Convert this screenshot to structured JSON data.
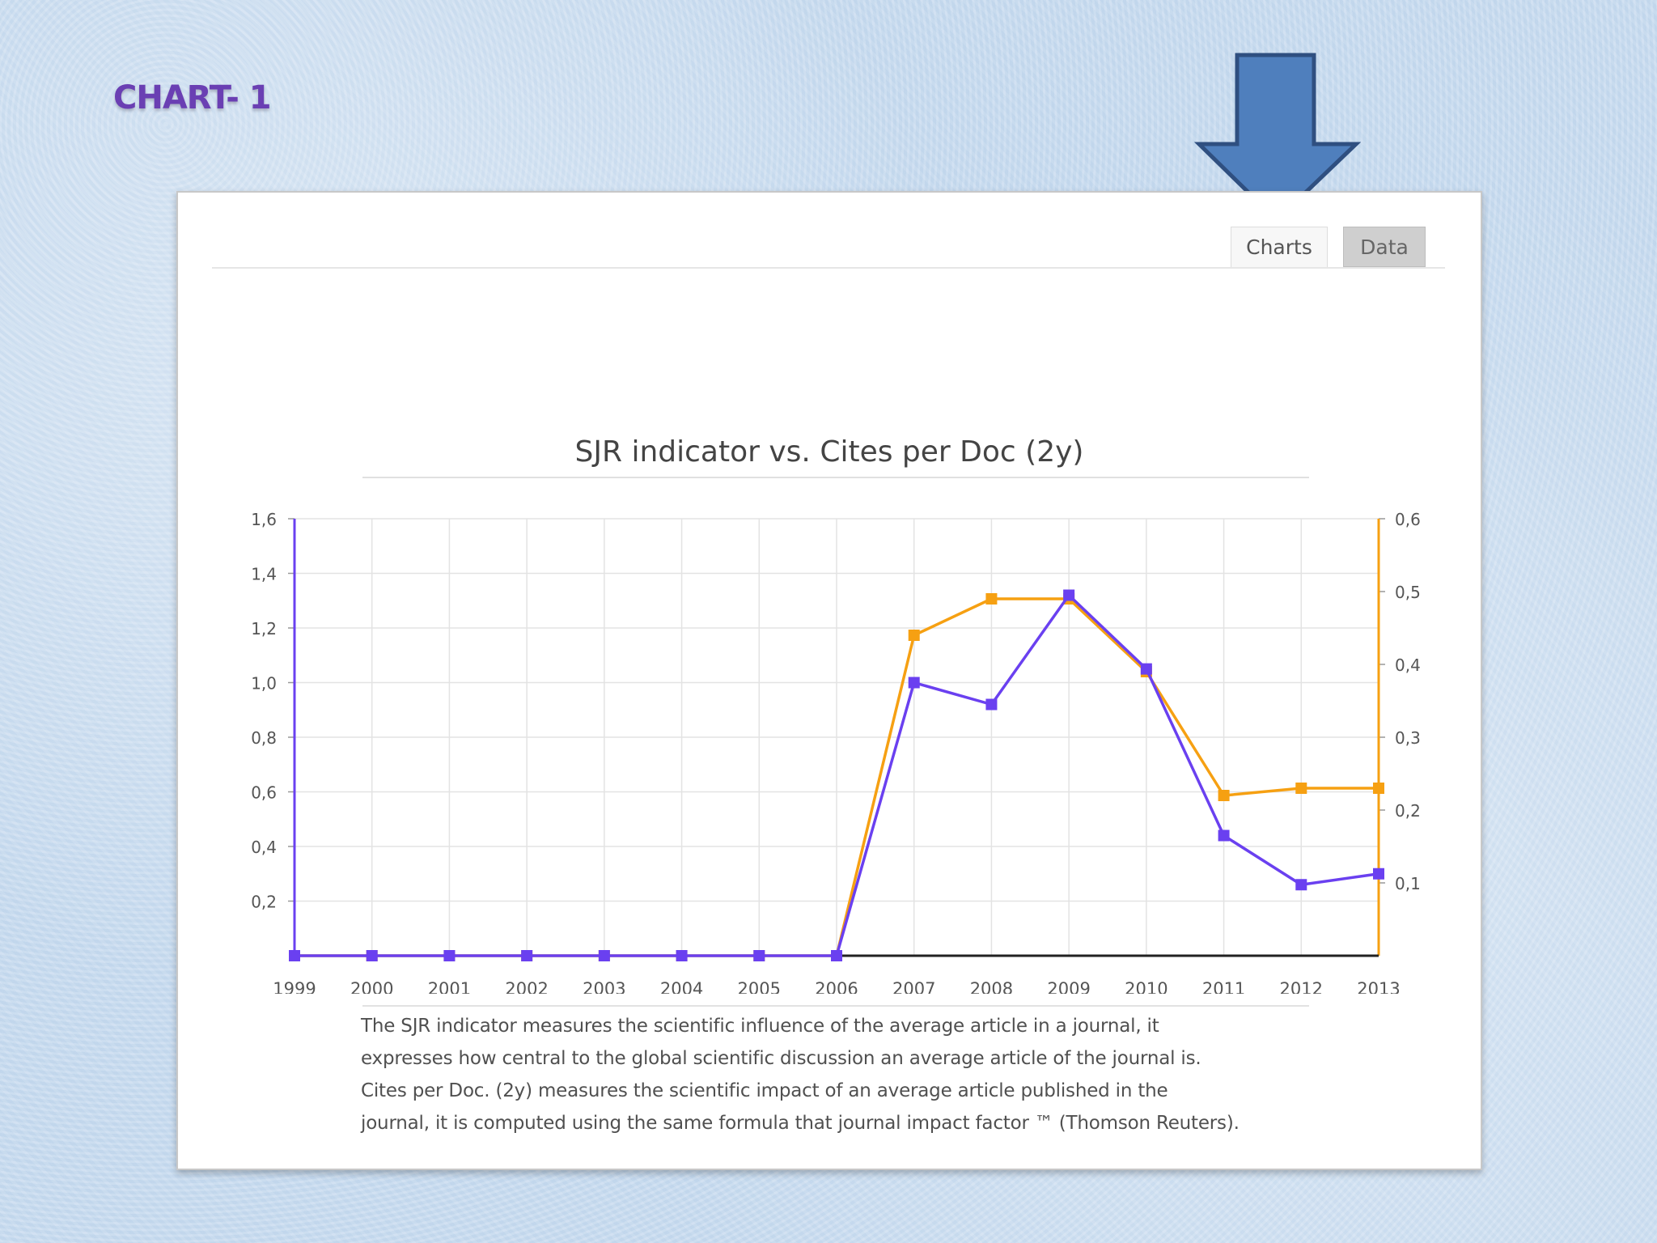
{
  "slide": {
    "title": "CHART- 1"
  },
  "tabs": [
    {
      "label": "Charts",
      "active": true
    },
    {
      "label": "Data",
      "active": false
    }
  ],
  "colors": {
    "cites": "#6a40f0",
    "sjr": "#f6a012",
    "arrow": "#4f7fbd",
    "arrow_border": "#2f4f80",
    "title": "#6a3fb3"
  },
  "chart_data": {
    "type": "line",
    "title": "SJR indicator vs. Cites per Doc (2y)",
    "x": [
      "1999",
      "2000",
      "2001",
      "2002",
      "2003",
      "2004",
      "2005",
      "2006",
      "2007",
      "2008",
      "2009",
      "2010",
      "2011",
      "2012",
      "2013"
    ],
    "left_axis": {
      "ticks": [
        "1,6",
        "1,4",
        "1,2",
        "1,0",
        "0,8",
        "0,6",
        "0,4",
        "0,2"
      ],
      "ylim": [
        0,
        1.6
      ]
    },
    "right_axis": {
      "ticks": [
        "0,6",
        "0,5",
        "0,4",
        "0,3",
        "0,2",
        "0,1"
      ],
      "ylim": [
        0,
        0.6
      ]
    },
    "series": [
      {
        "name": "Cites per Doc. (2 years)",
        "axis": "left",
        "values": [
          0,
          0,
          0,
          0,
          0,
          0,
          0,
          0,
          1.0,
          0.92,
          1.32,
          1.05,
          0.44,
          0.26,
          0.3
        ]
      },
      {
        "name": "SJR",
        "axis": "right",
        "values": [
          0,
          0,
          0,
          0,
          0,
          0,
          0,
          0,
          0.44,
          0.49,
          0.49,
          0.39,
          0.22,
          0.23,
          0.23
        ]
      }
    ],
    "grid": true,
    "legend": "bottom-left"
  },
  "caption": {
    "lines": [
      "The SJR indicator measures the scientific influence of the average article in a journal, it",
      "expresses how central to the global scientific discussion an average article of the journal is.",
      "Cites per Doc. (2y) measures the scientific impact of an average article published in the",
      "journal, it is computed using the same formula that journal impact factor ™ (Thomson Reuters)."
    ]
  }
}
